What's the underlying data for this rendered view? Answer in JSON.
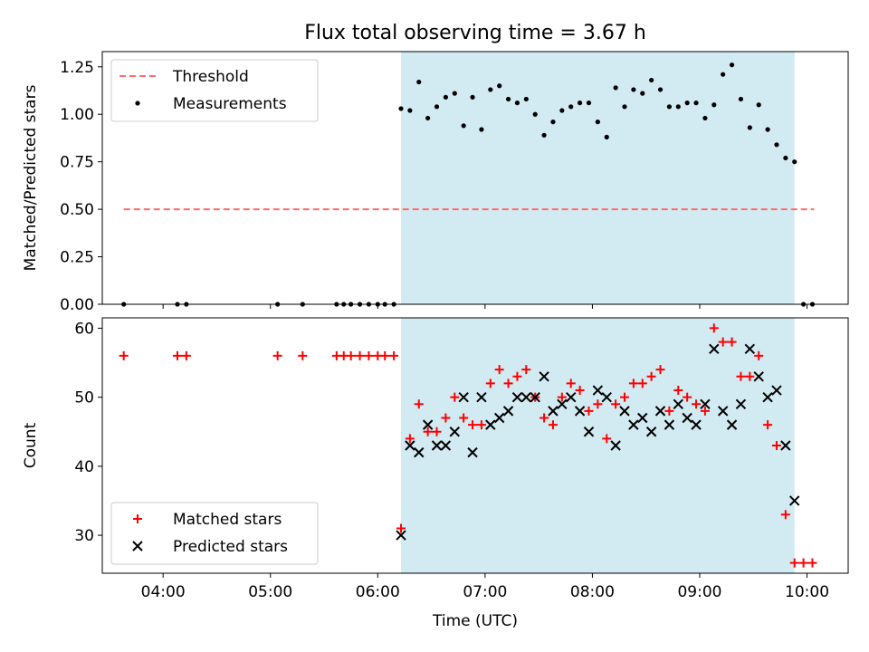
{
  "title": "Flux total observing time = 3.67 h",
  "chart_data": [
    {
      "type": "scatter",
      "ylabel": "Matched/Predicted stars",
      "ylim": [
        0,
        1.33
      ],
      "xlim": [
        "03:26",
        "10:23"
      ],
      "yticks": [
        "0.00",
        "0.25",
        "0.50",
        "0.75",
        "1.00",
        "1.25"
      ],
      "shaded_span": [
        "06:13",
        "09:53"
      ],
      "legend_position": "upper left",
      "threshold": {
        "name": "Threshold",
        "value": 0.5,
        "x_range": [
          "03:38",
          "10:04"
        ],
        "color": "#ff6b6b"
      },
      "series": [
        {
          "name": "Measurements",
          "color": "#000000",
          "points": [
            [
              "03:38",
              0.0
            ],
            [
              "04:08",
              0.0
            ],
            [
              "04:13",
              0.0
            ],
            [
              "05:04",
              0.0
            ],
            [
              "05:18",
              0.0
            ],
            [
              "05:37",
              0.0
            ],
            [
              "05:41",
              0.0
            ],
            [
              "05:45",
              0.0
            ],
            [
              "05:50",
              0.0
            ],
            [
              "05:55",
              0.0
            ],
            [
              "06:00",
              0.0
            ],
            [
              "06:04",
              0.0
            ],
            [
              "06:09",
              0.0
            ],
            [
              "06:13",
              1.03
            ],
            [
              "06:18",
              1.02
            ],
            [
              "06:23",
              1.17
            ],
            [
              "06:28",
              0.98
            ],
            [
              "06:33",
              1.04
            ],
            [
              "06:38",
              1.09
            ],
            [
              "06:43",
              1.11
            ],
            [
              "06:48",
              0.94
            ],
            [
              "06:53",
              1.09
            ],
            [
              "06:58",
              0.92
            ],
            [
              "07:03",
              1.13
            ],
            [
              "07:08",
              1.15
            ],
            [
              "07:13",
              1.08
            ],
            [
              "07:18",
              1.06
            ],
            [
              "07:23",
              1.08
            ],
            [
              "07:28",
              1.0
            ],
            [
              "07:33",
              0.89
            ],
            [
              "07:38",
              0.96
            ],
            [
              "07:43",
              1.02
            ],
            [
              "07:48",
              1.04
            ],
            [
              "07:53",
              1.06
            ],
            [
              "07:58",
              1.06
            ],
            [
              "08:03",
              0.96
            ],
            [
              "08:08",
              0.88
            ],
            [
              "08:13",
              1.14
            ],
            [
              "08:18",
              1.04
            ],
            [
              "08:23",
              1.13
            ],
            [
              "08:28",
              1.11
            ],
            [
              "08:33",
              1.18
            ],
            [
              "08:38",
              1.13
            ],
            [
              "08:43",
              1.04
            ],
            [
              "08:48",
              1.04
            ],
            [
              "08:53",
              1.06
            ],
            [
              "08:58",
              1.06
            ],
            [
              "09:03",
              0.98
            ],
            [
              "09:08",
              1.05
            ],
            [
              "09:13",
              1.21
            ],
            [
              "09:18",
              1.26
            ],
            [
              "09:23",
              1.08
            ],
            [
              "09:28",
              0.93
            ],
            [
              "09:33",
              1.05
            ],
            [
              "09:38",
              0.92
            ],
            [
              "09:43",
              0.84
            ],
            [
              "09:48",
              0.77
            ],
            [
              "09:53",
              0.75
            ],
            [
              "09:58",
              0.0
            ],
            [
              "10:03",
              0.0
            ]
          ]
        }
      ]
    },
    {
      "type": "scatter",
      "xlabel": "Time (UTC)",
      "ylabel": "Count",
      "ylim": [
        24.5,
        61.5
      ],
      "xlim": [
        "03:26",
        "10:23"
      ],
      "yticks": [
        "30",
        "40",
        "50",
        "60"
      ],
      "xticks": [
        "04:00",
        "05:00",
        "06:00",
        "07:00",
        "08:00",
        "09:00",
        "10:00"
      ],
      "shaded_span": [
        "06:13",
        "09:53"
      ],
      "legend_position": "lower left",
      "series": [
        {
          "name": "Matched stars",
          "marker": "plus",
          "color": "#ff0000",
          "points": [
            [
              "03:38",
              56
            ],
            [
              "04:08",
              56
            ],
            [
              "04:13",
              56
            ],
            [
              "05:04",
              56
            ],
            [
              "05:18",
              56
            ],
            [
              "05:37",
              56
            ],
            [
              "05:41",
              56
            ],
            [
              "05:45",
              56
            ],
            [
              "05:50",
              56
            ],
            [
              "05:55",
              56
            ],
            [
              "06:00",
              56
            ],
            [
              "06:04",
              56
            ],
            [
              "06:09",
              56
            ],
            [
              "06:13",
              31
            ],
            [
              "06:18",
              44
            ],
            [
              "06:23",
              49
            ],
            [
              "06:28",
              45
            ],
            [
              "06:33",
              45
            ],
            [
              "06:38",
              47
            ],
            [
              "06:43",
              50
            ],
            [
              "06:48",
              47
            ],
            [
              "06:53",
              46
            ],
            [
              "06:58",
              46
            ],
            [
              "07:03",
              52
            ],
            [
              "07:08",
              54
            ],
            [
              "07:13",
              52
            ],
            [
              "07:18",
              53
            ],
            [
              "07:23",
              54
            ],
            [
              "07:28",
              50
            ],
            [
              "07:33",
              47
            ],
            [
              "07:38",
              46
            ],
            [
              "07:43",
              50
            ],
            [
              "07:48",
              52
            ],
            [
              "07:53",
              51
            ],
            [
              "07:58",
              48
            ],
            [
              "08:03",
              49
            ],
            [
              "08:08",
              44
            ],
            [
              "08:13",
              49
            ],
            [
              "08:18",
              50
            ],
            [
              "08:23",
              52
            ],
            [
              "08:28",
              52
            ],
            [
              "08:33",
              53
            ],
            [
              "08:38",
              54
            ],
            [
              "08:43",
              48
            ],
            [
              "08:48",
              51
            ],
            [
              "08:53",
              50
            ],
            [
              "08:58",
              49
            ],
            [
              "09:03",
              48
            ],
            [
              "09:08",
              60
            ],
            [
              "09:13",
              58
            ],
            [
              "09:18",
              58
            ],
            [
              "09:23",
              53
            ],
            [
              "09:28",
              53
            ],
            [
              "09:33",
              56
            ],
            [
              "09:38",
              46
            ],
            [
              "09:43",
              43
            ],
            [
              "09:48",
              33
            ],
            [
              "09:53",
              26
            ],
            [
              "09:58",
              26
            ],
            [
              "10:03",
              26
            ]
          ]
        },
        {
          "name": "Predicted stars",
          "marker": "x",
          "color": "#000000",
          "points": [
            [
              "06:13",
              30
            ],
            [
              "06:18",
              43
            ],
            [
              "06:23",
              42
            ],
            [
              "06:28",
              46
            ],
            [
              "06:33",
              43
            ],
            [
              "06:38",
              43
            ],
            [
              "06:43",
              45
            ],
            [
              "06:48",
              50
            ],
            [
              "06:53",
              42
            ],
            [
              "06:58",
              50
            ],
            [
              "07:03",
              46
            ],
            [
              "07:08",
              47
            ],
            [
              "07:13",
              48
            ],
            [
              "07:18",
              50
            ],
            [
              "07:23",
              50
            ],
            [
              "07:28",
              50
            ],
            [
              "07:33",
              53
            ],
            [
              "07:38",
              48
            ],
            [
              "07:43",
              49
            ],
            [
              "07:48",
              50
            ],
            [
              "07:53",
              48
            ],
            [
              "07:58",
              45
            ],
            [
              "08:03",
              51
            ],
            [
              "08:08",
              50
            ],
            [
              "08:13",
              43
            ],
            [
              "08:18",
              48
            ],
            [
              "08:23",
              46
            ],
            [
              "08:28",
              47
            ],
            [
              "08:33",
              45
            ],
            [
              "08:38",
              48
            ],
            [
              "08:43",
              46
            ],
            [
              "08:48",
              49
            ],
            [
              "08:53",
              47
            ],
            [
              "08:58",
              46
            ],
            [
              "09:03",
              49
            ],
            [
              "09:08",
              57
            ],
            [
              "09:13",
              48
            ],
            [
              "09:18",
              46
            ],
            [
              "09:23",
              49
            ],
            [
              "09:28",
              57
            ],
            [
              "09:33",
              53
            ],
            [
              "09:38",
              50
            ],
            [
              "09:43",
              51
            ],
            [
              "09:48",
              43
            ],
            [
              "09:53",
              35
            ]
          ]
        }
      ]
    }
  ],
  "colors": {
    "shade": "#add8e6",
    "axis": "#000000"
  }
}
